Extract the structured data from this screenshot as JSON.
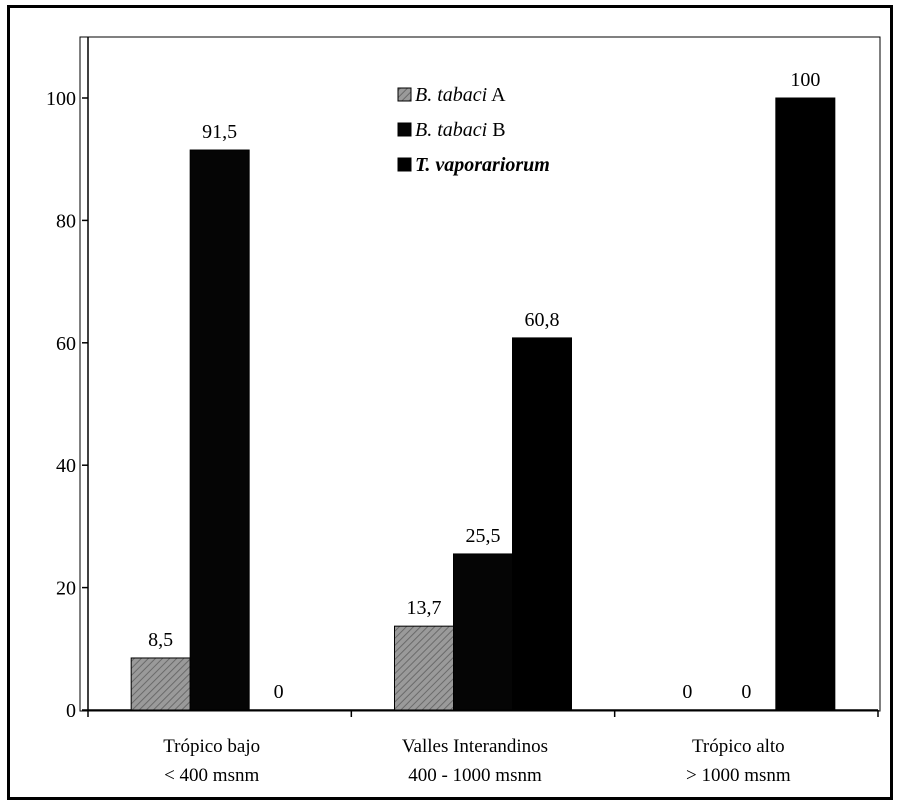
{
  "chart_data": {
    "type": "bar",
    "categories": [
      {
        "line1": "Trópico bajo",
        "line2": "< 400 msnm"
      },
      {
        "line1": "Valles Interandinos",
        "line2": "400 - 1000 msnm"
      },
      {
        "line1": "Trópico alto",
        "line2": "> 1000 msnm"
      }
    ],
    "series": [
      {
        "name": "B. tabaci",
        "suffix": "A",
        "color": "#8c8c8c",
        "values": [
          8.5,
          13.7,
          0
        ],
        "labels": [
          "8,5",
          "13,7",
          "0"
        ]
      },
      {
        "name": "B. tabaci",
        "suffix": "B",
        "color": "#050505",
        "values": [
          91.5,
          25.5,
          0
        ],
        "labels": [
          "91,5",
          "25,5",
          "0"
        ]
      },
      {
        "name": "T. vaporariorum",
        "suffix": "",
        "color": "#000000",
        "values": [
          0,
          60.8,
          100
        ],
        "labels": [
          "0",
          "60,8",
          "100"
        ]
      }
    ],
    "yticks": [
      0,
      20,
      40,
      60,
      80,
      100
    ],
    "ylim": [
      0,
      100
    ],
    "legend_position": "top-center",
    "grid": false
  }
}
